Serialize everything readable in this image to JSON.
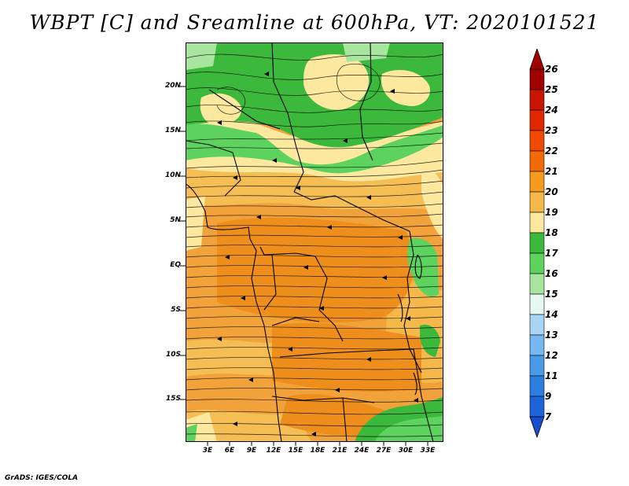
{
  "title": "WBPT [C] and Sreamline at 600hPa, VT: 2020101521",
  "footer": "GrADS: IGES/COLA",
  "map": {
    "lat_labels": [
      "20N",
      "15N",
      "10N",
      "5N",
      "EQ",
      "5S",
      "10S",
      "15S"
    ],
    "lon_labels": [
      "3E",
      "6E",
      "9E",
      "12E",
      "15E",
      "18E",
      "21E",
      "24E",
      "27E",
      "30E",
      "33E"
    ]
  },
  "colorbar": {
    "levels": [
      "26",
      "25",
      "24",
      "23",
      "22",
      "21",
      "20",
      "19",
      "18",
      "17",
      "16",
      "15",
      "14",
      "13",
      "12",
      "11",
      "9",
      "7"
    ],
    "colors": [
      "#a00000",
      "#c81400",
      "#e02800",
      "#f04a00",
      "#f26a08",
      "#f59a1c",
      "#f5b84a",
      "#fde8a0",
      "#3cb83c",
      "#5ed25e",
      "#a8e6a0",
      "#e6f8f2",
      "#a8d4f5",
      "#78b8f0",
      "#4a9ae8",
      "#2c7ee0",
      "#1e64d8"
    ],
    "extend_top_color": "#a00000",
    "extend_bottom_color": "#1a4ed0"
  }
}
